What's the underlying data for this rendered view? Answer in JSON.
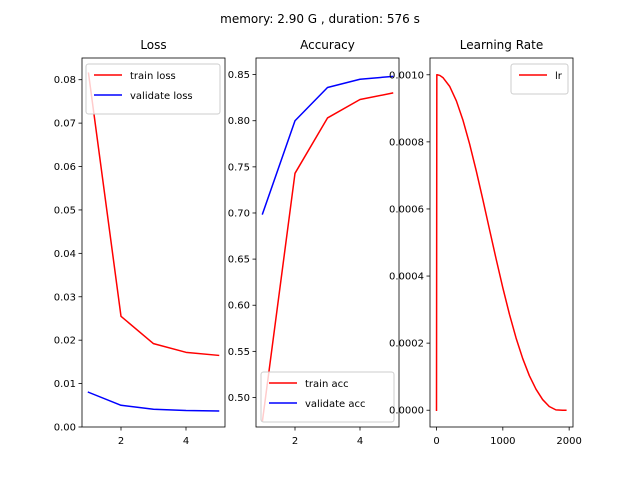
{
  "figure": {
    "suptitle": "memory: 2.90 G , duration: 576 s"
  },
  "chart_data": [
    {
      "type": "line",
      "title": "Loss",
      "xlabel": "",
      "ylabel": "",
      "xlim": [
        0.8,
        5.2
      ],
      "ylim": [
        0.0,
        0.085
      ],
      "xticks": [
        2,
        4
      ],
      "xtick_labels": [
        "2",
        "4"
      ],
      "yticks": [
        0.0,
        0.01,
        0.02,
        0.03,
        0.04,
        0.05,
        0.06,
        0.07,
        0.08
      ],
      "ytick_labels": [
        "0.00",
        "0.01",
        "0.02",
        "0.03",
        "0.04",
        "0.05",
        "0.06",
        "0.07",
        "0.08"
      ],
      "legend_position": "top-right",
      "grid": false,
      "series": [
        {
          "name": "train loss",
          "color": "#ff0000",
          "x": [
            1,
            2,
            3,
            4,
            5
          ],
          "y": [
            0.0815,
            0.0255,
            0.0192,
            0.0172,
            0.0165
          ]
        },
        {
          "name": "validate loss",
          "color": "#0000ff",
          "x": [
            1,
            2,
            3,
            4,
            5
          ],
          "y": [
            0.008,
            0.005,
            0.0041,
            0.0038,
            0.0037
          ]
        }
      ]
    },
    {
      "type": "line",
      "title": "Accuracy",
      "xlabel": "",
      "ylabel": "",
      "xlim": [
        0.8,
        5.2
      ],
      "ylim": [
        0.468,
        0.868
      ],
      "xticks": [
        2,
        4
      ],
      "xtick_labels": [
        "2",
        "4"
      ],
      "yticks": [
        0.5,
        0.55,
        0.6,
        0.65,
        0.7,
        0.75,
        0.8,
        0.85
      ],
      "ytick_labels": [
        "0.50",
        "0.55",
        "0.60",
        "0.65",
        "0.70",
        "0.75",
        "0.80",
        "0.85"
      ],
      "legend_position": "bottom-right",
      "grid": false,
      "series": [
        {
          "name": "train acc",
          "color": "#ff0000",
          "x": [
            1,
            2,
            3,
            4,
            5
          ],
          "y": [
            0.475,
            0.743,
            0.803,
            0.823,
            0.83
          ]
        },
        {
          "name": "validate acc",
          "color": "#0000ff",
          "x": [
            1,
            2,
            3,
            4,
            5
          ],
          "y": [
            0.699,
            0.8,
            0.836,
            0.845,
            0.848
          ]
        }
      ]
    },
    {
      "type": "line",
      "title": "Learning Rate",
      "xlabel": "",
      "ylabel": "",
      "xlim": [
        -98,
        2058
      ],
      "ylim": [
        -5e-05,
        0.00105
      ],
      "xticks": [
        0,
        1000,
        2000
      ],
      "xtick_labels": [
        "0",
        "1000",
        "2000"
      ],
      "yticks": [
        0.0,
        0.0002,
        0.0004,
        0.0006,
        0.0008,
        0.001
      ],
      "ytick_labels": [
        "0.0000",
        "0.0002",
        "0.0004",
        "0.0006",
        "0.0008",
        "0.0010"
      ],
      "legend_position": "top-right",
      "grid": false,
      "series": [
        {
          "name": "lr",
          "color": "#ff0000",
          "x": [
            0,
            5,
            10,
            50,
            100,
            200,
            300,
            400,
            500,
            600,
            700,
            800,
            900,
            1000,
            1100,
            1200,
            1300,
            1400,
            1500,
            1600,
            1700,
            1800,
            1900,
            1950
          ],
          "y": [
            0.0,
            0.001,
            0.001,
            0.000998,
            0.000991,
            0.000965,
            0.000922,
            0.000864,
            0.000793,
            0.000713,
            0.000627,
            0.000538,
            0.00045,
            0.000365,
            0.000286,
            0.000215,
            0.000154,
            0.000103,
            6.27e-05,
            3.18e-05,
            1.11e-05,
            1.1e-06,
            1e-07,
            0.0
          ]
        }
      ]
    }
  ]
}
